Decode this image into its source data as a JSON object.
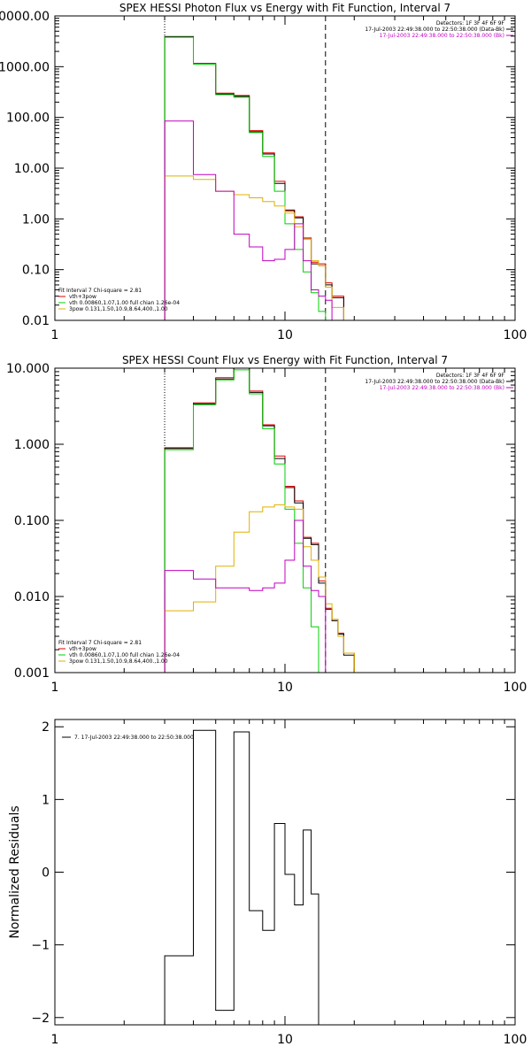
{
  "chart_data": [
    {
      "type": "line",
      "title": "SPEX HESSI Photon Flux vs Energy with Fit Function, Interval 7",
      "x_scale": "log",
      "y_scale": "log",
      "xlim": [
        1,
        100
      ],
      "ylim": [
        0.01,
        10000
      ],
      "x_ticks": [
        1,
        10,
        100
      ],
      "x_tick_labels": [
        "1",
        "10",
        "100"
      ],
      "y_ticks": [
        0.01,
        0.1,
        1,
        10,
        100,
        1000,
        10000
      ],
      "y_tick_labels": [
        "0.01",
        "0.10",
        "1.00",
        "10.00",
        "100.00",
        "1000.00",
        "10000.00"
      ],
      "vertical_lines": [
        {
          "x": 3,
          "style": "dotted"
        },
        {
          "x": 15,
          "style": "dashed"
        }
      ],
      "info_lines": [
        "Detectors: 1F 3F 4F 6F 9F",
        "17-Jul-2003 22:49:38.000 to 22:50:38.000 (Data-Bk)",
        "17-Jul-2003 22:49:38.000 to 22:50:38.000 (Bk)"
      ],
      "info_colors": [
        "#000000",
        "#000000",
        "#c000c0"
      ],
      "legend_header": "Fit Interval 7   Chi-square = 2.81",
      "legend": [
        {
          "label": "vth+3pow",
          "color": "#e00000"
        },
        {
          "label": "vth 0.00860,1.07,1.00  full chian 1.26e-04",
          "color": "#00d000"
        },
        {
          "label": "3pow 0.131,1.50,10.9,8.64,400.,1.00",
          "color": "#e0b000"
        }
      ],
      "bin_edges": [
        3,
        4,
        5,
        6,
        7,
        8,
        9,
        10,
        11,
        12,
        13,
        14,
        15,
        16,
        18
      ],
      "series": [
        {
          "color": "#e00000",
          "values": [
            3900,
            1150,
            300,
            270,
            55,
            20,
            5.5,
            1.5,
            1.1,
            0.42,
            0.14,
            0.13,
            0.055,
            0.03
          ]
        },
        {
          "color": "#000000",
          "values": [
            3900,
            1150,
            290,
            260,
            52,
            19,
            5,
            1.45,
            1.05,
            0.4,
            0.13,
            0.12,
            0.05,
            0.028
          ]
        },
        {
          "color": "#00d000",
          "values": [
            3800,
            1120,
            280,
            250,
            50,
            17,
            3.5,
            0.8,
            0.25,
            0.09,
            0.035,
            0.015
          ]
        },
        {
          "color": "#e0b000",
          "values": [
            7,
            6,
            3.5,
            3,
            2.6,
            2.2,
            1.8,
            1.3,
            0.7,
            0.4,
            0.15,
            0.12,
            0.045,
            0.018
          ]
        },
        {
          "color": "#c000c0",
          "values": [
            85,
            7.5,
            3.5,
            0.5,
            0.28,
            0.15,
            0.16,
            0.25,
            0.8,
            0.15,
            0.04,
            0.03,
            0.025
          ]
        }
      ]
    },
    {
      "type": "line",
      "title": "SPEX HESSI Count Flux vs Energy with Fit Function, Interval 7",
      "x_scale": "log",
      "y_scale": "log",
      "xlim": [
        1,
        100
      ],
      "ylim": [
        0.001,
        10
      ],
      "x_ticks": [
        1,
        10,
        100
      ],
      "x_tick_labels": [
        "1",
        "10",
        "100"
      ],
      "y_ticks": [
        0.001,
        0.01,
        0.1,
        1,
        10
      ],
      "y_tick_labels": [
        "0.001",
        "0.010",
        "0.100",
        "1.000",
        "10.000"
      ],
      "vertical_lines": [
        {
          "x": 3,
          "style": "dotted"
        },
        {
          "x": 15,
          "style": "dashed"
        }
      ],
      "info_lines": [
        "Detectors: 1F 3F 4F 6F 9F",
        "17-Jul-2003 22:49:38.000 to 22:50:38.000 (Data-Bk)",
        "17-Jul-2003 22:49:38.000 to 22:50:38.000 (Bk)"
      ],
      "info_colors": [
        "#000000",
        "#000000",
        "#c000c0"
      ],
      "legend_header": "Fit Interval 7   Chi-square = 2.81",
      "legend": [
        {
          "label": "vth+3pow",
          "color": "#e00000"
        },
        {
          "label": "vth 0.00860,1.07,1.00  full chian 1.26e-04",
          "color": "#00d000"
        },
        {
          "label": "3pow 0.131,1.50,10.9,8.64,400.,1.00",
          "color": "#e0b000"
        }
      ],
      "bin_edges": [
        3,
        4,
        5,
        6,
        7,
        8,
        9,
        10,
        11,
        12,
        13,
        14,
        15,
        16,
        17,
        18,
        20
      ],
      "series": [
        {
          "color": "#e00000",
          "values": [
            0.9,
            3.5,
            7.5,
            10.5,
            5,
            1.8,
            0.7,
            0.28,
            0.18,
            0.06,
            0.05,
            0.016,
            0.007,
            0.005,
            0.0033,
            0.0018
          ]
        },
        {
          "color": "#000000",
          "values": [
            0.88,
            3.4,
            7.2,
            10,
            4.8,
            1.75,
            0.65,
            0.27,
            0.17,
            0.058,
            0.048,
            0.015,
            0.0068,
            0.0048,
            0.0032,
            0.0017
          ]
        },
        {
          "color": "#00d000",
          "values": [
            0.85,
            3.3,
            7,
            9.5,
            4.6,
            1.6,
            0.55,
            0.14,
            0.05,
            0.013,
            0.004
          ]
        },
        {
          "color": "#e0b000",
          "values": [
            0.0065,
            0.0085,
            0.025,
            0.07,
            0.13,
            0.15,
            0.16,
            0.15,
            0.14,
            0.045,
            0.03,
            0.018,
            0.008,
            0.005,
            0.003,
            0.0018
          ]
        },
        {
          "color": "#c000c0",
          "values": [
            0.022,
            0.017,
            0.013,
            0.013,
            0.012,
            0.013,
            0.015,
            0.03,
            0.1,
            0.025,
            0.012,
            0.01
          ]
        }
      ]
    },
    {
      "type": "line",
      "title": "",
      "ylabel": "Normalized Residuals",
      "x_scale": "log",
      "xlim": [
        1,
        100
      ],
      "ylim": [
        -2.1,
        2.1
      ],
      "x_ticks": [
        1,
        10,
        100
      ],
      "x_tick_labels": [
        "1",
        "10",
        "100"
      ],
      "y_ticks": [
        -2,
        -1,
        0,
        1,
        2
      ],
      "y_tick_labels": [
        "−2",
        "−1",
        "0",
        "1",
        "2"
      ],
      "legend": [
        {
          "label": "7. 17-Jul-2003 22:49:38.000 to 22:50:38.000",
          "color": "#000000"
        }
      ],
      "bin_edges": [
        3,
        4,
        5,
        6,
        7,
        8,
        9,
        10,
        11,
        12,
        13,
        14,
        15
      ],
      "series": [
        {
          "color": "#000000",
          "values": [
            -1.15,
            1.95,
            -1.9,
            1.93,
            -0.53,
            -0.8,
            0.67,
            -0.03,
            -0.45,
            0.58,
            -0.3
          ]
        }
      ]
    }
  ]
}
